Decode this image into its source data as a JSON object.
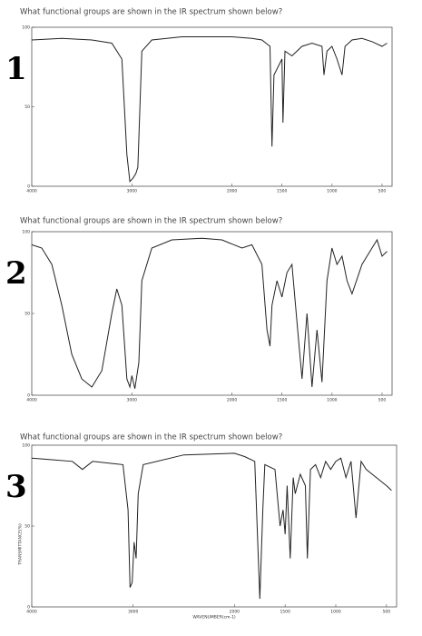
{
  "chart_data": [
    {
      "type": "line",
      "title": "What functional groups are shown in the IR spectrum shown below?",
      "annotation": "1",
      "x": [
        4000,
        3700,
        3400,
        3200,
        3100,
        3050,
        3020,
        2990,
        2960,
        2940,
        2900,
        2800,
        2500,
        2000,
        1800,
        1700,
        1620,
        1600,
        1580,
        1500,
        1490,
        1470,
        1400,
        1300,
        1200,
        1100,
        1080,
        1050,
        1000,
        950,
        900,
        870,
        800,
        700,
        600,
        500,
        450
      ],
      "series": [
        {
          "color": "#222",
          "values": [
            92,
            93,
            92,
            90,
            80,
            20,
            3,
            5,
            8,
            12,
            85,
            92,
            94,
            94,
            93,
            92,
            88,
            25,
            70,
            80,
            40,
            85,
            82,
            88,
            90,
            88,
            70,
            85,
            88,
            80,
            70,
            88,
            92,
            93,
            91,
            88,
            90
          ]
        }
      ],
      "xlim": [
        4000,
        400
      ],
      "ylim": [
        0,
        100
      ],
      "xticks": [
        4000,
        3000,
        2000,
        1500,
        1000,
        500
      ],
      "yticks": [
        0,
        50,
        100
      ]
    },
    {
      "type": "line",
      "title": "What functional groups are shown in the IR spectrum shown below?",
      "annotation": "2",
      "x": [
        4000,
        3900,
        3800,
        3700,
        3600,
        3500,
        3400,
        3300,
        3200,
        3150,
        3100,
        3050,
        3020,
        3000,
        2970,
        2930,
        2900,
        2800,
        2600,
        2300,
        2100,
        1900,
        1800,
        1700,
        1650,
        1620,
        1600,
        1550,
        1500,
        1450,
        1400,
        1350,
        1300,
        1250,
        1200,
        1150,
        1100,
        1050,
        1000,
        950,
        900,
        850,
        800,
        700,
        600,
        550,
        500,
        450
      ],
      "series": [
        {
          "color": "#222",
          "values": [
            92,
            90,
            80,
            55,
            25,
            10,
            5,
            15,
            50,
            65,
            55,
            10,
            5,
            12,
            4,
            20,
            70,
            90,
            95,
            96,
            95,
            90,
            92,
            80,
            40,
            30,
            55,
            70,
            60,
            75,
            80,
            45,
            10,
            50,
            5,
            40,
            8,
            70,
            90,
            80,
            85,
            70,
            62,
            80,
            90,
            95,
            85,
            88
          ]
        }
      ],
      "xlim": [
        4000,
        400
      ],
      "ylim": [
        0,
        100
      ],
      "xticks": [
        4000,
        3000,
        2000,
        1500,
        1000,
        500
      ],
      "yticks": [
        0,
        50,
        100
      ]
    },
    {
      "type": "line",
      "title": "What functional groups are shown in the IR spectrum shown below?",
      "annotation": "3",
      "xlabel": "WAVENUMBER(cm-1)",
      "ylabel": "TRANSMITTANCE(%)",
      "x": [
        4000,
        3800,
        3600,
        3500,
        3400,
        3100,
        3050,
        3030,
        3010,
        2990,
        2970,
        2950,
        2900,
        2500,
        2000,
        1900,
        1800,
        1750,
        1720,
        1700,
        1600,
        1550,
        1520,
        1500,
        1480,
        1450,
        1420,
        1400,
        1350,
        1300,
        1280,
        1250,
        1200,
        1150,
        1100,
        1050,
        1000,
        950,
        900,
        850,
        800,
        750,
        700,
        600,
        500,
        450
      ],
      "series": [
        {
          "color": "#222",
          "values": [
            92,
            91,
            90,
            85,
            90,
            88,
            60,
            12,
            15,
            40,
            30,
            70,
            88,
            94,
            95,
            93,
            90,
            5,
            60,
            88,
            85,
            50,
            60,
            45,
            75,
            30,
            80,
            70,
            82,
            75,
            30,
            85,
            88,
            80,
            90,
            85,
            90,
            92,
            80,
            90,
            55,
            90,
            85,
            80,
            75,
            72
          ]
        }
      ],
      "xlim": [
        4000,
        400
      ],
      "ylim": [
        0,
        100
      ],
      "xticks": [
        4000,
        3000,
        2000,
        1500,
        1000,
        500
      ],
      "yticks": [
        0,
        50,
        100
      ]
    }
  ]
}
